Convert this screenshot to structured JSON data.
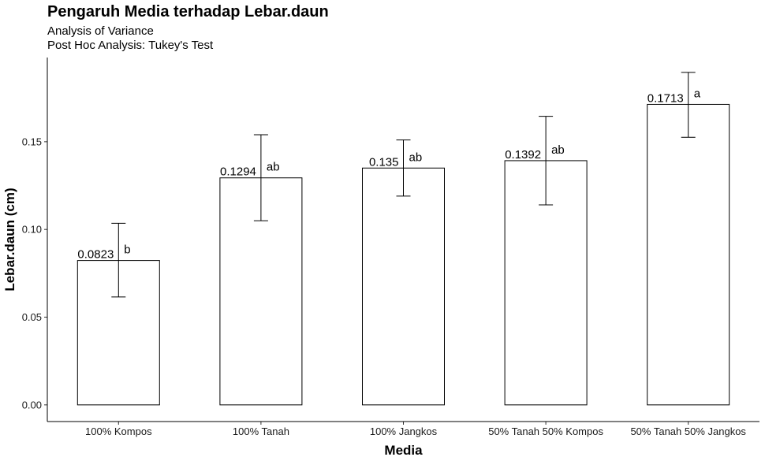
{
  "chart_data": {
    "type": "bar",
    "title": "Pengaruh Media terhadap Lebar.daun",
    "subtitle": [
      "Analysis of Variance",
      "Post Hoc Analysis: Tukey's Test"
    ],
    "xlabel": "Media",
    "ylabel": "Lebar.daun (cm)",
    "categories": [
      "100% Kompos",
      "100% Tanah",
      "100% Jangkos",
      "50% Tanah 50% Kompos",
      "50% Tanah 50% Jangkos"
    ],
    "values": [
      0.0823,
      0.1294,
      0.135,
      0.1392,
      0.1713
    ],
    "value_labels": [
      "0.0823",
      "0.1294",
      "0.135",
      "0.1392",
      "0.1713"
    ],
    "error_low": [
      0.0615,
      0.105,
      0.119,
      0.114,
      0.1525
    ],
    "error_high": [
      0.1035,
      0.154,
      0.151,
      0.1645,
      0.1895
    ],
    "group_letters": [
      "b",
      "ab",
      "ab",
      "ab",
      "a"
    ],
    "ylim": [
      -0.0095,
      0.198
    ],
    "yticks": [
      0.0,
      0.05,
      0.1,
      0.15
    ],
    "ytick_labels": [
      "0.00",
      "0.05",
      "0.10",
      "0.15"
    ],
    "grid": false,
    "legend": "none"
  }
}
